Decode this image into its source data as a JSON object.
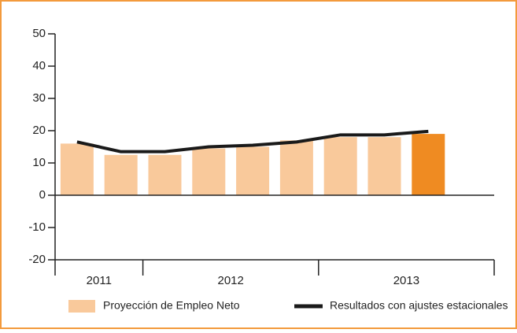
{
  "chart_data": {
    "type": "bar_line",
    "categories": [
      null,
      null,
      null,
      null,
      null,
      null,
      null,
      null,
      null,
      null
    ],
    "year_groups": [
      {
        "label": "2011",
        "count": 2
      },
      {
        "label": "2012",
        "count": 4
      },
      {
        "label": "2013",
        "count": 4
      }
    ],
    "series": [
      {
        "name": "Proyección de Empleo Neto",
        "type": "bar",
        "color": "#f9c99b",
        "colors": [
          "#f9c99b",
          "#f9c99b",
          "#f9c99b",
          "#f9c99b",
          "#f9c99b",
          "#f9c99b",
          "#f9c99b",
          "#f9c99b",
          "#ef8b22",
          null
        ],
        "values": [
          16,
          12.5,
          12.5,
          14.5,
          15,
          17,
          18,
          18,
          19,
          null
        ]
      },
      {
        "name": "Resultados con ajustes estacionales",
        "type": "line",
        "color": "#1a1a1a",
        "values": [
          16.5,
          13.5,
          13.5,
          15,
          15.5,
          16.5,
          18.7,
          18.7,
          19.8,
          null
        ]
      }
    ],
    "ylim": [
      -20,
      50
    ],
    "yticks": [
      -20,
      -10,
      0,
      10,
      20,
      30,
      40,
      50
    ]
  }
}
